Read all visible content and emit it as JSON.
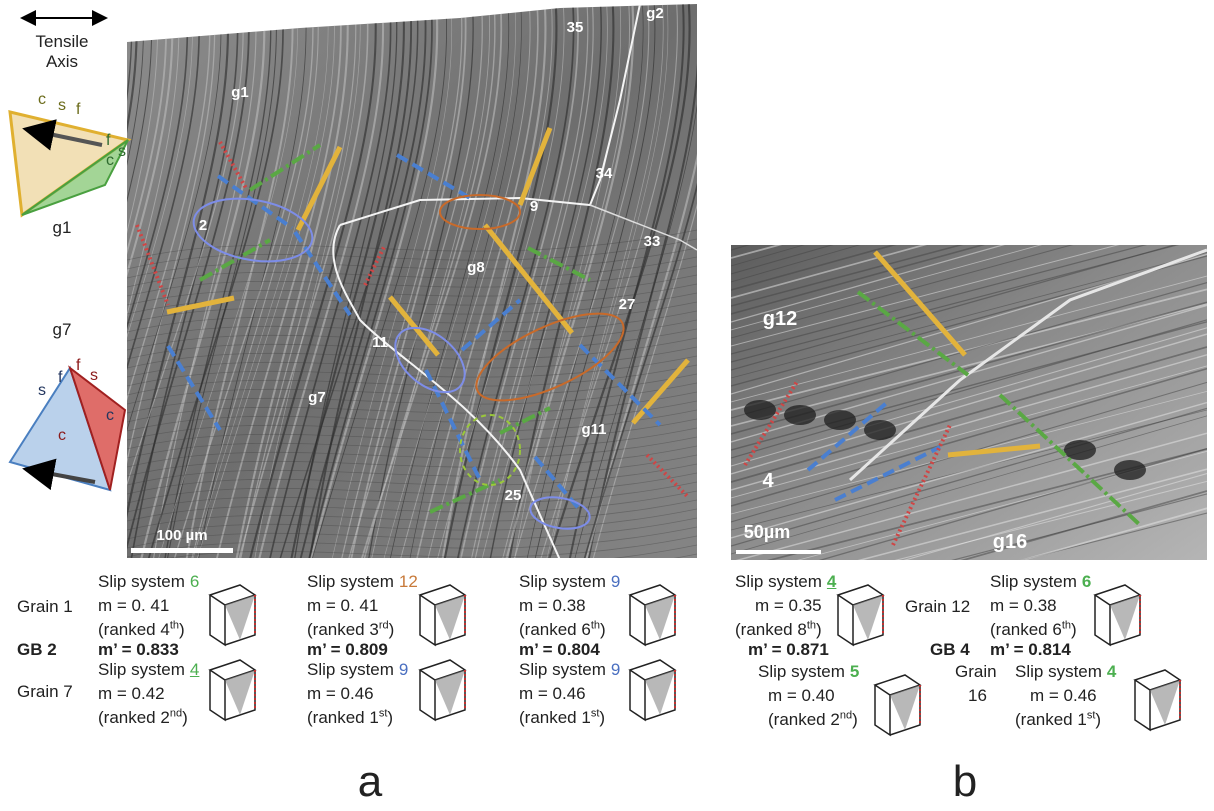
{
  "panel_a": {
    "letter": "a",
    "legend": {
      "arrow_label": [
        "Tensile",
        "Axis"
      ],
      "tet1_letters": [
        {
          "text": "c",
          "color": "#6b6b1a"
        },
        {
          "text": "s",
          "color": "#6b6b1a"
        },
        {
          "text": "f",
          "color": "#6b6b1a"
        },
        {
          "text": "f",
          "color": "#2f6b2f"
        },
        {
          "text": "s",
          "color": "#2f6b2f"
        },
        {
          "text": "c",
          "color": "#2f6b2f"
        }
      ],
      "tet1_grain": "g1",
      "middle_grain": "g7",
      "tet2_letters": [
        {
          "text": "s",
          "color": "#23365f"
        },
        {
          "text": "f",
          "color": "#23365f"
        },
        {
          "text": "f",
          "color": "#8b1a1a"
        },
        {
          "text": "s",
          "color": "#8b1a1a"
        },
        {
          "text": "c",
          "color": "#23365f"
        },
        {
          "text": "c",
          "color": "#8b1a1a"
        }
      ]
    },
    "micrograph": {
      "labels": [
        "g1",
        "g2",
        "35",
        "34",
        "33",
        "9",
        "2",
        "g8",
        "27",
        "11",
        "g7",
        "g11",
        "25"
      ],
      "scale_bar": "100 µm"
    },
    "table": {
      "row_labels": [
        "Grain 1",
        "GB 2",
        "Grain 7"
      ],
      "columns": [
        {
          "top": {
            "slip": {
              "label": "Slip system",
              "number": "6",
              "color": "#4caf50",
              "underline": false,
              "bold": false
            },
            "m": "m = 0. 41",
            "rank": {
              "before": "(ranked 4",
              "sup": "th",
              "after": ")"
            }
          },
          "mprime": "m’ = 0.833",
          "bottom": {
            "slip": {
              "label": "Slip system",
              "number": "4",
              "color": "#4caf50",
              "underline": true,
              "bold": false
            },
            "m": "m = 0.42",
            "rank": {
              "before": "(ranked 2",
              "sup": "nd",
              "after": ")"
            }
          }
        },
        {
          "top": {
            "slip": {
              "label": "Slip system",
              "number": "12",
              "color": "#c87a3a",
              "underline": false,
              "bold": false
            },
            "m": "m = 0. 41",
            "rank": {
              "before": "(ranked 3",
              "sup": "rd",
              "after": ")"
            }
          },
          "mprime": "m’ = 0.809",
          "bottom": {
            "slip": {
              "label": "Slip system",
              "number": "9",
              "color": "#4a6fc0",
              "underline": false,
              "bold": false
            },
            "m": "m = 0.46",
            "rank": {
              "before": "(ranked 1",
              "sup": "st",
              "after": ")"
            }
          }
        },
        {
          "top": {
            "slip": {
              "label": "Slip system",
              "number": "9",
              "color": "#4a6fc0",
              "underline": false,
              "bold": false
            },
            "m": "m = 0.38",
            "rank": {
              "before": "(ranked 6",
              "sup": "th",
              "after": ")"
            }
          },
          "mprime": "m’ = 0.804",
          "bottom": {
            "slip": {
              "label": "Slip system",
              "number": "9",
              "color": "#4a6fc0",
              "underline": false,
              "bold": false
            },
            "m": "m = 0.46",
            "rank": {
              "before": "(ranked 1",
              "sup": "st",
              "after": ")"
            }
          }
        }
      ]
    }
  },
  "panel_b": {
    "letter": "b",
    "micrograph": {
      "labels": [
        "g12",
        "4",
        "g16"
      ],
      "scale_bar": "50µm"
    },
    "table": {
      "grain_top": "Grain 12",
      "gb": "GB 4",
      "grain_bottom": [
        "Grain",
        "16"
      ],
      "left": {
        "top": {
          "slip": {
            "label": "Slip system",
            "number": "4",
            "color": "#4caf50",
            "underline": true,
            "bold": true
          },
          "m": "m = 0.35",
          "rank": {
            "before": "(ranked 8",
            "sup": "th",
            "after": ")"
          }
        },
        "mprime": "m’ = 0.871",
        "bottom": {
          "slip": {
            "label": "Slip system",
            "number": "5",
            "color": "#4caf50",
            "underline": false,
            "bold": true
          },
          "m": "m = 0.40",
          "rank": {
            "before": "(ranked 2",
            "sup": "nd",
            "after": ")"
          }
        }
      },
      "right": {
        "top": {
          "slip": {
            "label": "Slip system",
            "number": "6",
            "color": "#4caf50",
            "underline": false,
            "bold": true
          },
          "m": "m = 0.38",
          "rank": {
            "before": "(ranked 6",
            "sup": "th",
            "after": ")"
          }
        },
        "mprime": "m’ = 0.814",
        "bottom": {
          "slip": {
            "label": "Slip system",
            "number": "4",
            "color": "#4caf50",
            "underline": false,
            "bold": true
          },
          "m": "m = 0.46",
          "rank": {
            "before": "(ranked 1",
            "sup": "st",
            "after": ")"
          }
        }
      }
    }
  }
}
